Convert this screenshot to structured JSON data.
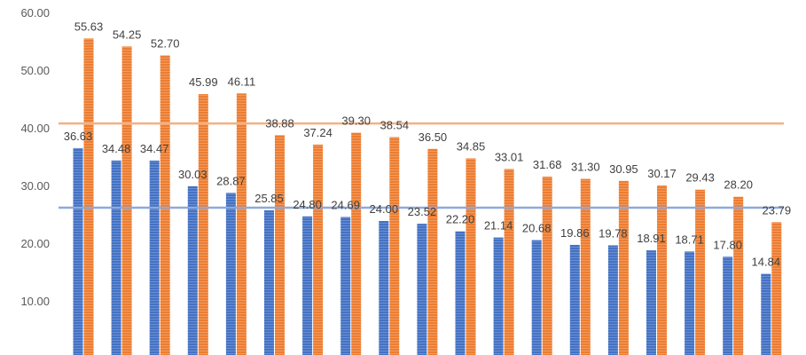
{
  "chart_data": {
    "type": "bar",
    "title": "",
    "xlabel": "",
    "ylabel": "",
    "ylim": [
      0,
      60
    ],
    "yticks": [
      "10.00",
      "20.00",
      "30.00",
      "40.00",
      "50.00",
      "60.00"
    ],
    "grid": false,
    "legend": "none",
    "series": [
      {
        "color": "#4472C4",
        "values": [
          36.63,
          34.48,
          34.47,
          30.03,
          28.87,
          25.85,
          24.8,
          24.69,
          24.0,
          23.52,
          22.2,
          21.14,
          20.68,
          19.86,
          19.78,
          18.91,
          18.71,
          17.8,
          14.84
        ],
        "labels": [
          "36.63",
          "34.48",
          "34.47",
          "30.03",
          "28.87",
          "25.85",
          "24.80",
          "24.69",
          "24.00",
          "23.52",
          "22.20",
          "21.14",
          "20.68",
          "19.86",
          "19.78",
          "18.91",
          "18.71",
          "17.80",
          "14.84"
        ]
      },
      {
        "color": "#ED7D31",
        "values": [
          55.63,
          54.25,
          52.7,
          45.99,
          46.11,
          38.88,
          37.24,
          39.3,
          38.54,
          36.5,
          34.85,
          33.01,
          31.68,
          31.3,
          30.95,
          30.17,
          29.43,
          28.2,
          23.79
        ],
        "labels": [
          "55.63",
          "54.25",
          "52.70",
          "45.99",
          "46.11",
          "38.88",
          "37.24",
          "39.30",
          "38.54",
          "36.50",
          "34.85",
          "33.01",
          "31.68",
          "31.30",
          "30.95",
          "30.17",
          "29.43",
          "28.20",
          "23.79"
        ]
      }
    ],
    "reference_lines": [
      {
        "value": 40.9,
        "color": "#F4B183"
      },
      {
        "value": 26.3,
        "color": "#8FAADC"
      }
    ]
  }
}
